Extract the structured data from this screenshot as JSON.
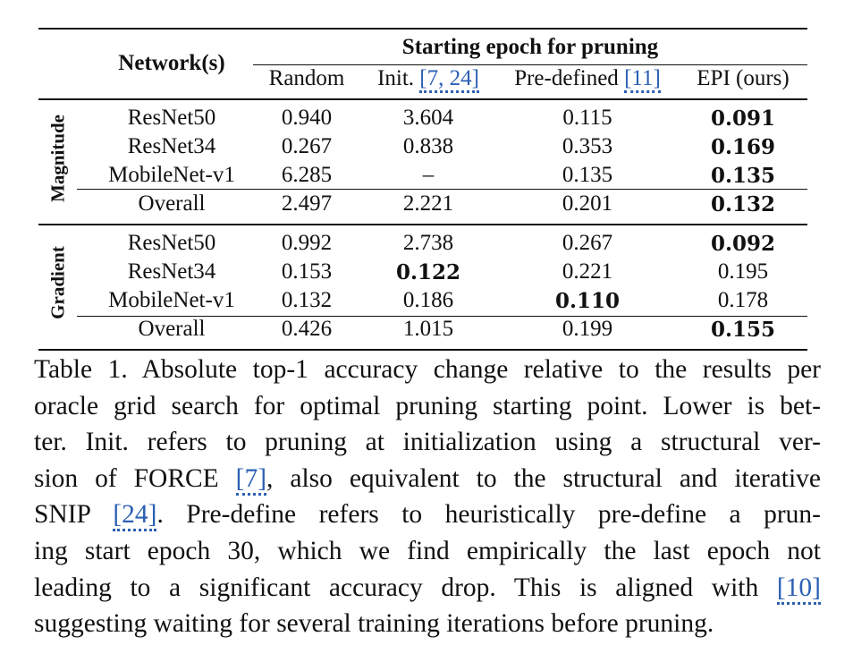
{
  "table": {
    "network_header": "Network(s)",
    "group_header": "Starting epoch for pruning",
    "columns": {
      "random": "Random",
      "init_text": "Init.",
      "init_cite": "[7, 24]",
      "predefined_text": "Pre-defined",
      "predefined_cite": "[11]",
      "epi": "EPI (ours)"
    },
    "sections": [
      {
        "label": "Magnitude",
        "rows": [
          {
            "network": "ResNet50",
            "random": "0.940",
            "init": "3.604",
            "predefined": "0.115",
            "epi": "0.091",
            "bold": "epi"
          },
          {
            "network": "ResNet34",
            "random": "0.267",
            "init": "0.838",
            "predefined": "0.353",
            "epi": "0.169",
            "bold": "epi"
          },
          {
            "network": "MobileNet-v1",
            "random": "6.285",
            "init": "–",
            "predefined": "0.135",
            "epi": "0.135",
            "bold": "epi"
          },
          {
            "network": "Overall",
            "random": "2.497",
            "init": "2.221",
            "predefined": "0.201",
            "epi": "0.132",
            "bold": "epi"
          }
        ]
      },
      {
        "label": "Gradient",
        "rows": [
          {
            "network": "ResNet50",
            "random": "0.992",
            "init": "2.738",
            "predefined": "0.267",
            "epi": "0.092",
            "bold": "epi"
          },
          {
            "network": "ResNet34",
            "random": "0.153",
            "init": "0.122",
            "predefined": "0.221",
            "epi": "0.195",
            "bold": "init"
          },
          {
            "network": "MobileNet-v1",
            "random": "0.132",
            "init": "0.186",
            "predefined": "0.110",
            "epi": "0.178",
            "bold": "predefined"
          },
          {
            "network": "Overall",
            "random": "0.426",
            "init": "1.015",
            "predefined": "0.199",
            "epi": "0.155",
            "bold": "epi"
          }
        ]
      }
    ]
  },
  "caption": {
    "l1": "Table 1. Absolute top-1 accuracy change relative to the results per",
    "l2": "oracle grid search for optimal pruning starting point. Lower is bet-",
    "l3": "ter.  Init.  refers to pruning at initialization using a structural ver-",
    "l4a": "sion of FORCE ",
    "l4cite": "[7]",
    "l4b": ", also equivalent to the structural and iterative",
    "l5a": "SNIP ",
    "l5cite": "[24]",
    "l5b": ".  Pre-define refers to heuristically pre-define a prun-",
    "l6": "ing start epoch 30, which we find empirically the last epoch not",
    "l7a": "leading to a significant accuracy drop.  This is aligned with ",
    "l7cite": "[10]",
    "l8": "suggesting waiting for several training iterations before pruning."
  }
}
